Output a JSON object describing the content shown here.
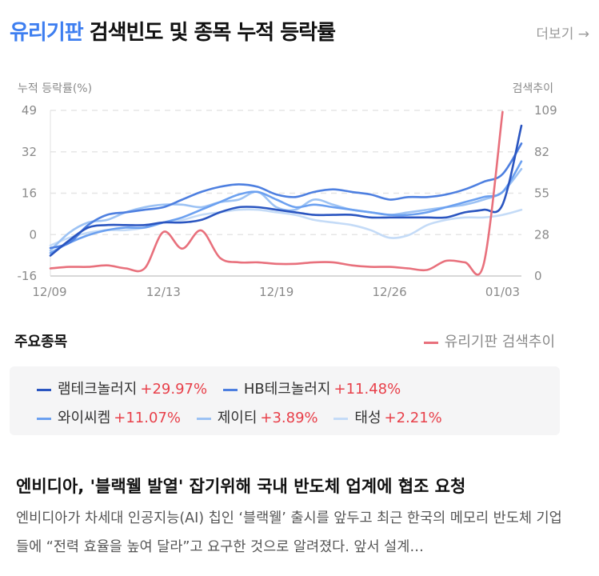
{
  "header": {
    "keyword": "유리기판",
    "title_rest": " 검색빈도 및 종목 누적 등락률",
    "more_label": "더보기 →"
  },
  "chart_data": {
    "type": "line",
    "ylabel_left": "누적 등락률(%)",
    "ylabel_right": "검색추이",
    "y_left_ticks": [
      "49",
      "32",
      "16",
      "0",
      "-16"
    ],
    "y_left_range": [
      -16,
      49
    ],
    "y_right_ticks": [
      "109",
      "82",
      "55",
      "28",
      "0"
    ],
    "y_right_range": [
      0,
      109
    ],
    "x_ticks": [
      "12/09",
      "12/13",
      "12/19",
      "12/26",
      "01/03"
    ],
    "x_tick_index": [
      0,
      6,
      12,
      18,
      24
    ],
    "grid": true,
    "series": [
      {
        "name": "램테크놀러지",
        "axis": "left",
        "color": "#2a55c0",
        "values": [
          -8,
          -2,
          3,
          4,
          4,
          4,
          5,
          5,
          6,
          9,
          11,
          11,
          10,
          9,
          8,
          8,
          8,
          7,
          7,
          7,
          7,
          7,
          9,
          10,
          12,
          43
        ]
      },
      {
        "name": "HB테크놀러지",
        "axis": "left",
        "color": "#4d7fe0",
        "values": [
          -5,
          -3,
          4,
          8,
          9,
          10,
          11,
          14,
          17,
          19,
          20,
          19,
          16,
          15,
          17,
          18,
          17,
          16,
          14,
          15,
          15,
          16,
          18,
          21,
          24,
          36
        ]
      },
      {
        "name": "와이씨켐",
        "axis": "left",
        "color": "#6ba0f0",
        "values": [
          -7,
          -3,
          0,
          2,
          3,
          3,
          5,
          7,
          10,
          13,
          16,
          17,
          14,
          11,
          12,
          11,
          10,
          9,
          8,
          8,
          9,
          11,
          13,
          15,
          17,
          29
        ]
      },
      {
        "name": "제이티",
        "axis": "left",
        "color": "#9cc2f4",
        "values": [
          -6,
          1,
          5,
          6,
          9,
          11,
          12,
          12,
          11,
          13,
          14,
          17,
          11,
          10,
          14,
          12,
          10,
          9,
          8,
          9,
          10,
          11,
          12,
          14,
          17,
          26
        ]
      },
      {
        "name": "태성",
        "axis": "left",
        "color": "#c4dbf7",
        "values": [
          -4,
          -1,
          1,
          2,
          2,
          3,
          5,
          6,
          8,
          9,
          10,
          10,
          9,
          8,
          6,
          5,
          4,
          2,
          -1,
          0,
          4,
          6,
          7,
          7,
          8,
          10
        ]
      },
      {
        "name": "유리기판 검색추이",
        "axis": "right",
        "color": "#e8707c",
        "values": [
          5,
          6,
          6,
          7,
          5,
          5,
          29,
          18,
          30,
          12,
          9,
          9,
          8,
          8,
          9,
          9,
          7,
          6,
          6,
          5,
          4,
          10,
          9,
          8,
          108,
          null
        ]
      }
    ]
  },
  "stocks_section": {
    "title": "주요종목",
    "search_legend": "유리기판 검색추이",
    "stocks": [
      {
        "name": "램테크놀러지",
        "change": "+29.97%",
        "color": "#2a55c0"
      },
      {
        "name": "HB테크놀러지",
        "change": "+11.48%",
        "color": "#4d7fe0"
      },
      {
        "name": "와이씨켐",
        "change": "+11.07%",
        "color": "#6ba0f0"
      },
      {
        "name": "제이티",
        "change": "+3.89%",
        "color": "#9cc2f4"
      },
      {
        "name": "태성",
        "change": "+2.21%",
        "color": "#c4dbf7"
      }
    ]
  },
  "news": {
    "title": "엔비디아, '블랙웰 발열' 잡기위해 국내 반도체 업계에 협조 요청",
    "body": "엔비디아가 차세대 인공지능(AI) 칩인 ‘블랙웰’ 출시를 앞두고 최근 한국의 메모리 반도체 기업들에 “전력 효율을 높여 달라”고 요구한 것으로 알려졌다. 앞서 설계…"
  }
}
